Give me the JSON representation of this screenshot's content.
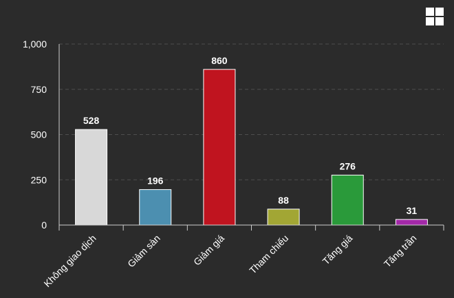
{
  "toolbar": {
    "menu_icon": "grid-menu-icon"
  },
  "chart_data": {
    "type": "bar",
    "categories": [
      "Không giao dịch",
      "Giảm sàn",
      "Giảm giá",
      "Tham chiếu",
      "Tăng giá",
      "Tăng trần"
    ],
    "values": [
      528,
      196,
      860,
      88,
      276,
      31
    ],
    "colors": [
      "#d8d8d8",
      "#4c8fb0",
      "#c0141f",
      "#a2a634",
      "#2a9a3a",
      "#a329a8"
    ],
    "data_labels": [
      "528",
      "196",
      "860",
      "88",
      "276",
      "31"
    ],
    "yticks": [
      0,
      250,
      500,
      750,
      1000
    ],
    "ytick_labels": [
      "0",
      "250",
      "500",
      "750",
      "1,000"
    ],
    "ylim": [
      0,
      1000
    ],
    "grid": true,
    "legend": "none",
    "background": "#2b2b2b"
  }
}
